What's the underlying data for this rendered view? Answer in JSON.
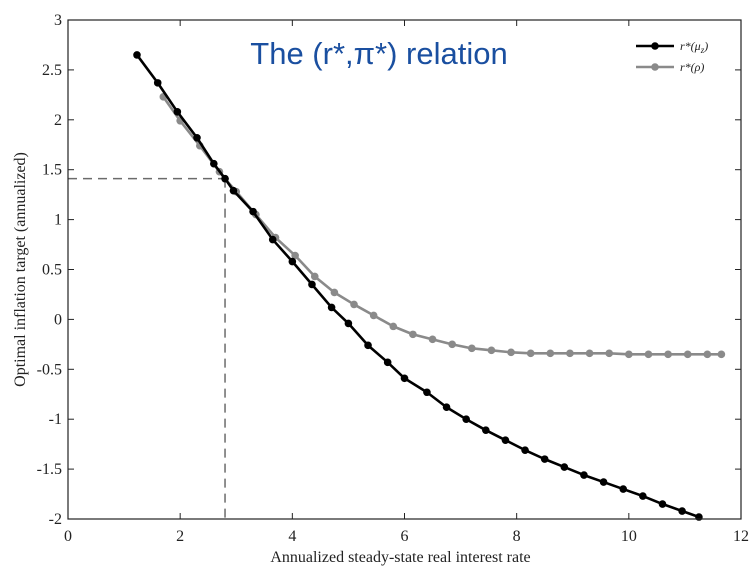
{
  "chart_data": {
    "type": "line",
    "title": "The (r*,π*) relation",
    "xlabel": "Annualized steady-state real interest rate",
    "ylabel": "Optimal inflation target (annualized)",
    "xlim": [
      0,
      12
    ],
    "ylim": [
      -2,
      3
    ],
    "xticks": [
      "0",
      "2",
      "4",
      "6",
      "8",
      "10",
      "12"
    ],
    "yticks": [
      "-2",
      "-1.5",
      "-1",
      "-0.5",
      "0",
      "0.5",
      "1",
      "1.5",
      "2",
      "2.5",
      "3"
    ],
    "grid": false,
    "legend_position": "top-right",
    "reference_point": {
      "x": 2.8,
      "y": 1.41
    },
    "series": [
      {
        "name": "r*(μz)",
        "color": "#000000",
        "x": [
          1.23,
          1.6,
          1.95,
          2.3,
          2.6,
          2.8,
          2.95,
          3.3,
          3.65,
          4.0,
          4.35,
          4.7,
          5.0,
          5.35,
          5.7,
          6.0,
          6.4,
          6.75,
          7.1,
          7.45,
          7.8,
          8.15,
          8.5,
          8.85,
          9.2,
          9.55,
          9.9,
          10.25,
          10.6,
          10.95,
          11.25
        ],
        "y": [
          2.65,
          2.37,
          2.08,
          1.82,
          1.56,
          1.41,
          1.29,
          1.08,
          0.8,
          0.58,
          0.35,
          0.12,
          -0.04,
          -0.26,
          -0.43,
          -0.59,
          -0.73,
          -0.88,
          -1.0,
          -1.11,
          -1.21,
          -1.31,
          -1.4,
          -1.48,
          -1.56,
          -1.63,
          -1.7,
          -1.77,
          -1.85,
          -1.92,
          -1.98
        ]
      },
      {
        "name": "r*(ρ)",
        "color": "#8a8a8a",
        "x": [
          1.7,
          2.0,
          2.35,
          2.7,
          2.8,
          3.0,
          3.35,
          3.7,
          4.05,
          4.4,
          4.75,
          5.1,
          5.45,
          5.8,
          6.15,
          6.5,
          6.85,
          7.2,
          7.55,
          7.9,
          8.25,
          8.6,
          8.95,
          9.3,
          9.65,
          10.0,
          10.35,
          10.7,
          11.05,
          11.4,
          11.65
        ],
        "y": [
          2.23,
          1.99,
          1.74,
          1.48,
          1.41,
          1.28,
          1.05,
          0.82,
          0.64,
          0.43,
          0.27,
          0.15,
          0.04,
          -0.07,
          -0.15,
          -0.2,
          -0.25,
          -0.29,
          -0.31,
          -0.33,
          -0.34,
          -0.34,
          -0.34,
          -0.34,
          -0.34,
          -0.35,
          -0.35,
          -0.35,
          -0.35,
          -0.35,
          -0.35
        ]
      }
    ]
  },
  "colors": {
    "title": "#1a4fa0",
    "axis": "#222222",
    "reference": "#6b6b6b"
  }
}
